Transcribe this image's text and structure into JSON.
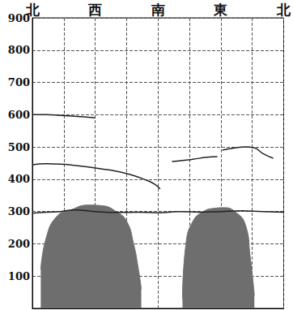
{
  "chart_data": {
    "type": "line",
    "xlim": [
      0,
      360
    ],
    "xticks": [
      {
        "value": 0,
        "label": "北"
      },
      {
        "value": 90,
        "label": "西"
      },
      {
        "value": 180,
        "label": "南"
      },
      {
        "value": 270,
        "label": "東"
      },
      {
        "value": 360,
        "label": "北"
      }
    ],
    "ylim": [
      0,
      900
    ],
    "yticks": [
      100,
      200,
      300,
      400,
      500,
      600,
      700,
      800,
      900
    ],
    "grid": true,
    "series": [
      {
        "type": "area",
        "color": "#6e6e6e",
        "x": [
          12,
          20,
          35,
          55,
          80,
          100,
          120,
          135,
          145,
          152,
          156
        ],
        "values": [
          120,
          220,
          285,
          305,
          320,
          318,
          300,
          270,
          200,
          120,
          60
        ]
      },
      {
        "type": "area",
        "color": "#6e6e6e",
        "x": [
          215,
          220,
          230,
          245,
          260,
          275,
          290,
          305,
          312,
          318
        ],
        "values": [
          30,
          200,
          270,
          300,
          310,
          312,
          300,
          260,
          160,
          40
        ]
      },
      {
        "type": "line",
        "color": "#222222",
        "x": [
          0,
          20,
          40,
          60,
          80,
          90
        ],
        "values": [
          600,
          600,
          598,
          595,
          592,
          590
        ]
      },
      {
        "type": "line",
        "color": "#222222",
        "x": [
          0,
          20,
          40,
          60,
          80,
          100,
          120,
          140,
          160,
          175,
          183
        ],
        "values": [
          445,
          448,
          447,
          443,
          438,
          432,
          425,
          415,
          400,
          385,
          370
        ]
      },
      {
        "type": "line",
        "color": "#222222",
        "x": [
          0,
          20,
          40,
          60,
          90,
          120,
          150,
          180,
          210,
          240,
          270,
          300,
          330,
          360
        ],
        "values": [
          295,
          298,
          300,
          305,
          300,
          297,
          298,
          296,
          300,
          298,
          300,
          302,
          300,
          298
        ]
      },
      {
        "type": "line",
        "color": "#222222",
        "x": [
          200,
          215,
          230,
          250,
          265
        ],
        "values": [
          455,
          458,
          462,
          468,
          470
        ]
      },
      {
        "type": "line",
        "color": "#222222",
        "x": [
          272,
          290,
          305,
          318,
          330,
          345
        ],
        "values": [
          490,
          497,
          500,
          497,
          480,
          465
        ]
      }
    ]
  }
}
